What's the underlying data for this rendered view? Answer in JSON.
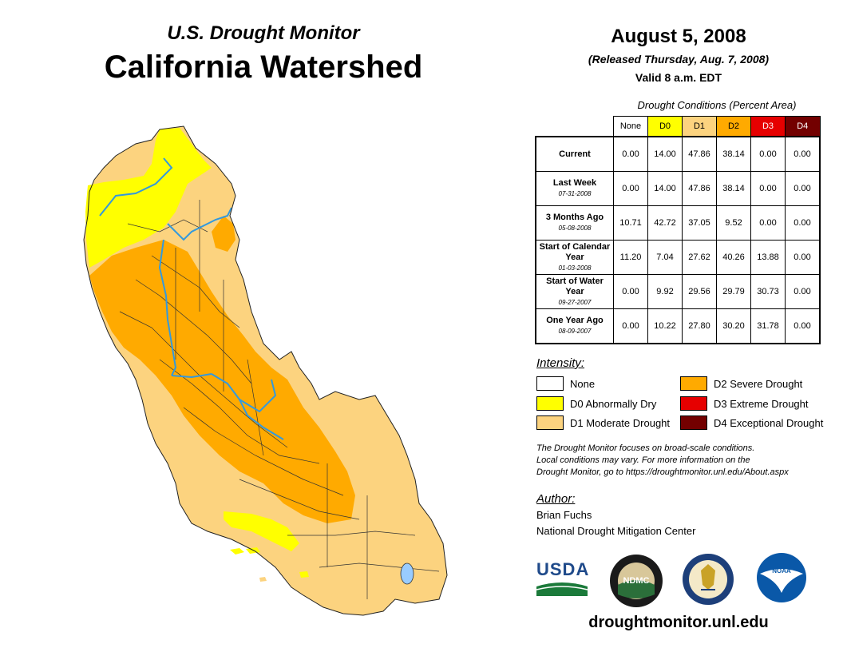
{
  "header": {
    "subtitle": "U.S. Drought Monitor",
    "title": "California Watershed",
    "date": "August 5, 2008",
    "released": "(Released Thursday, Aug. 7, 2008)",
    "valid": "Valid 8 a.m. EDT"
  },
  "table": {
    "caption": "Drought Conditions (Percent Area)",
    "columns": [
      {
        "label": "None",
        "color": "#ffffff",
        "text_color": "#000000"
      },
      {
        "label": "D0",
        "color": "#ffff00",
        "text_color": "#000000"
      },
      {
        "label": "D1",
        "color": "#fcd37f",
        "text_color": "#000000"
      },
      {
        "label": "D2",
        "color": "#ffaa00",
        "text_color": "#000000"
      },
      {
        "label": "D3",
        "color": "#e60000",
        "text_color": "#ffffff"
      },
      {
        "label": "D4",
        "color": "#730000",
        "text_color": "#ffffff"
      }
    ],
    "rows": [
      {
        "label": "Current",
        "date": "",
        "values": [
          "0.00",
          "14.00",
          "47.86",
          "38.14",
          "0.00",
          "0.00"
        ]
      },
      {
        "label": "Last Week",
        "date": "07-31-2008",
        "values": [
          "0.00",
          "14.00",
          "47.86",
          "38.14",
          "0.00",
          "0.00"
        ]
      },
      {
        "label": "3 Months Ago",
        "date": "05-08-2008",
        "values": [
          "10.71",
          "42.72",
          "37.05",
          "9.52",
          "0.00",
          "0.00"
        ]
      },
      {
        "label": "Start of Calendar Year",
        "date": "01-03-2008",
        "values": [
          "11.20",
          "7.04",
          "27.62",
          "40.26",
          "13.88",
          "0.00"
        ]
      },
      {
        "label": "Start of Water Year",
        "date": "09-27-2007",
        "values": [
          "0.00",
          "9.92",
          "29.56",
          "29.79",
          "30.73",
          "0.00"
        ]
      },
      {
        "label": "One Year Ago",
        "date": "08-09-2007",
        "values": [
          "0.00",
          "10.22",
          "27.80",
          "30.20",
          "31.78",
          "0.00"
        ]
      }
    ]
  },
  "legend": {
    "title": "Intensity:",
    "items": [
      {
        "label": "None",
        "color": "#ffffff"
      },
      {
        "label": "D0 Abnormally Dry",
        "color": "#ffff00"
      },
      {
        "label": "D1 Moderate Drought",
        "color": "#fcd37f"
      },
      {
        "label": "D2 Severe Drought",
        "color": "#ffaa00"
      },
      {
        "label": "D3 Extreme Drought",
        "color": "#e60000"
      },
      {
        "label": "D4 Exceptional Drought",
        "color": "#730000"
      }
    ]
  },
  "note": {
    "line1": "The Drought Monitor focuses on broad-scale conditions.",
    "line2": "Local conditions may vary. For more information on the",
    "line3": "Drought Monitor, go to https://droughtmonitor.unl.edu/About.aspx"
  },
  "author": {
    "title": "Author:",
    "name": "Brian Fuchs",
    "org": "National Drought Mitigation Center"
  },
  "logos": {
    "usda": "USDA",
    "ndmc": "NDMC",
    "noaa": "NOAA"
  },
  "footer_url": "droughtmonitor.unl.edu",
  "map_colors": {
    "d0": "#ffff00",
    "d1": "#fcd37f",
    "d2": "#ffaa00",
    "river": "#3399dd",
    "lake": "#99ccff"
  }
}
